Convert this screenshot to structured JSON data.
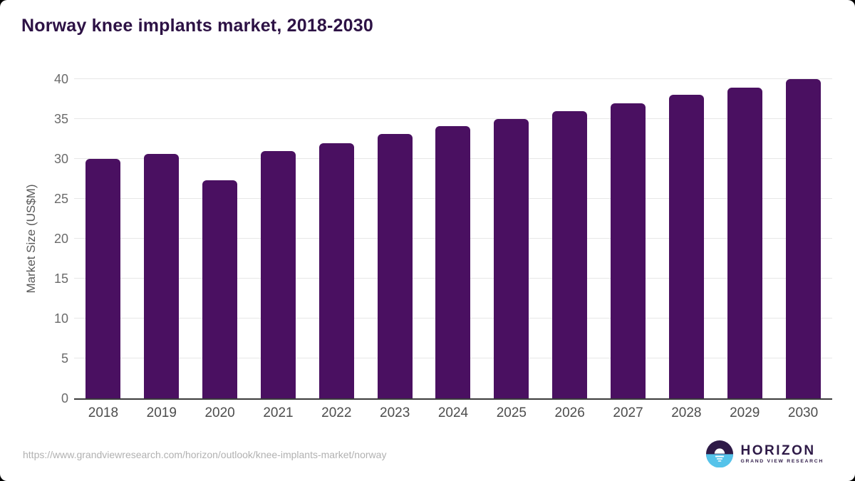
{
  "page": {
    "background_color": "#000000",
    "card_color": "#ffffff"
  },
  "header": {
    "title_color": "#2d1245"
  },
  "chart_data": {
    "type": "bar",
    "title": "Norway knee implants market, 2018-2030",
    "categories": [
      "2018",
      "2019",
      "2020",
      "2021",
      "2022",
      "2023",
      "2024",
      "2025",
      "2026",
      "2027",
      "2028",
      "2029",
      "2030"
    ],
    "values": [
      30.0,
      30.6,
      27.3,
      31.0,
      32.0,
      33.1,
      34.1,
      35.0,
      36.0,
      37.0,
      38.0,
      38.9,
      40.0
    ],
    "xlabel": "",
    "ylabel": "Market Size (US$M)",
    "ylim": [
      0,
      40
    ],
    "yticks": [
      0,
      5,
      10,
      15,
      20,
      25,
      30,
      35,
      40
    ],
    "grid": "horizontal",
    "legend": "none",
    "bar_color": "#4a1061",
    "gridline_color": "#e7e7e7",
    "axis_line_color": "#3c3c3c",
    "ytick_label_color": "#6b6b6b",
    "xtick_label_color": "#4d4d4d"
  },
  "footer": {
    "source_url": "https://www.grandviewresearch.com/horizon/outlook/knee-implants-market/norway",
    "logo": {
      "name": "HORIZON",
      "subtitle": "GRAND VIEW RESEARCH",
      "purple": "#2e1a47",
      "blue": "#55c3ea"
    }
  }
}
